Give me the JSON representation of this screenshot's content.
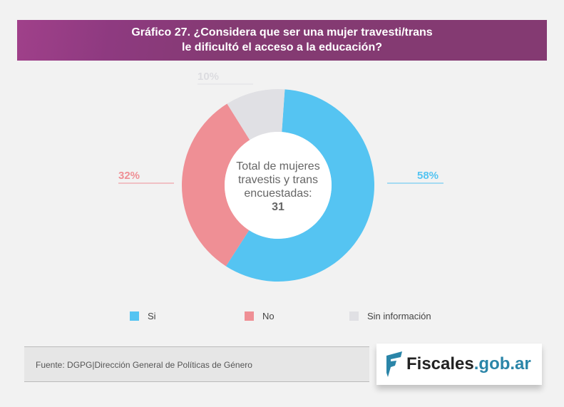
{
  "chart_data": {
    "type": "pie",
    "title": "Gráfico 27. ¿Considera que ser una mujer travesti/trans le dificultó el acceso a la educación?",
    "title_lines": [
      "Gráfico 27. ¿Considera que ser una mujer travesti/trans",
      "le dificultó el acceso a la educación?"
    ],
    "categories": [
      "Si",
      "No",
      "Sin información"
    ],
    "values": [
      58,
      32,
      10
    ],
    "labels": [
      "58%",
      "32%",
      "10%"
    ],
    "colors": [
      "#55c4f2",
      "#ef8f95",
      "#e0e0e4"
    ],
    "center_text": "Total de mujeres travestis y trans encuestadas:",
    "center_value": "31",
    "legend_position": "bottom"
  },
  "source": "Fuente: DGPG|Dirección General de Políticas de Género",
  "logo": {
    "part1": "Fiscales",
    "part2": ".gob.ar"
  }
}
